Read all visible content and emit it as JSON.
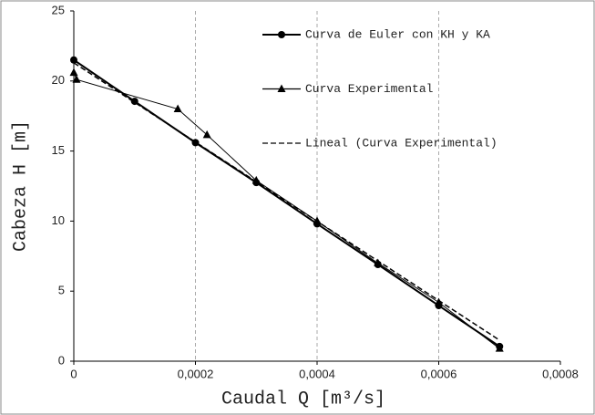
{
  "chart_data": {
    "type": "line",
    "x_label": "Caudal Q [m³/s]",
    "y_label": "Cabeza H [m]",
    "xlim": [
      0,
      0.0008
    ],
    "ylim": [
      0,
      25
    ],
    "xticks": [
      0,
      {
        "value": 0.0002,
        "label": "0,0002"
      },
      {
        "value": 0.0004,
        "label": "0,0004"
      },
      {
        "value": 0.0006,
        "label": "0,0006"
      },
      {
        "value": 0.0008,
        "label": "0,0008"
      }
    ],
    "yticks": [
      0,
      5,
      10,
      15,
      20,
      25
    ],
    "grid": "x",
    "legend": "upper right",
    "series": [
      {
        "name": "Curva de Euler con KH y KA",
        "color": "#000000",
        "marker": "circle",
        "style": "solid",
        "x": [
          0,
          0.0001,
          0.0002,
          0.0003,
          0.0004,
          0.0005,
          0.0006,
          0.0007
        ],
        "values": [
          21.5,
          18.55,
          15.6,
          12.75,
          9.8,
          6.9,
          3.97,
          1.05
        ]
      },
      {
        "name": "Curva Experimental",
        "color": "#000000",
        "marker": "triangle",
        "style": "solid",
        "x": [
          0,
          4.5e-06,
          0.000171,
          0.000219,
          0.0003,
          0.0004,
          0.0005,
          0.0006,
          0.0007
        ],
        "values": [
          20.6,
          20.1,
          18.0,
          16.15,
          12.9,
          10.0,
          7.0,
          4.2,
          0.9
        ]
      },
      {
        "name": "Lineal (Curva Experimental)",
        "color": "#000000",
        "marker": "none",
        "style": "dashed",
        "x": [
          0,
          0.0007
        ],
        "values": [
          21.3,
          1.5
        ]
      }
    ]
  }
}
